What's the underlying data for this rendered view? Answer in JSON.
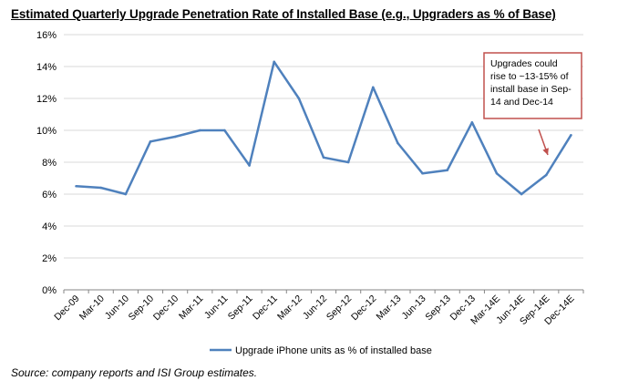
{
  "chart_data": {
    "type": "line",
    "title": "Estimated Quarterly Upgrade Penetration Rate of Installed Base (e.g., Upgraders as % of Base)",
    "categories": [
      "Dec-09",
      "Mar-10",
      "Jun-10",
      "Sep-10",
      "Dec-10",
      "Mar-11",
      "Jun-11",
      "Sep-11",
      "Dec-11",
      "Mar-12",
      "Jun-12",
      "Sep-12",
      "Dec-12",
      "Mar-13",
      "Jun-13",
      "Sep-13",
      "Dec-13",
      "Mar-14E",
      "Jun-14E",
      "Sep-14E",
      "Dec-14E"
    ],
    "series": [
      {
        "name": "Upgrade iPhone units as % of installed base",
        "values": [
          6.5,
          6.4,
          6.0,
          9.3,
          9.6,
          10.0,
          10.0,
          7.8,
          14.3,
          12.0,
          8.3,
          8.0,
          12.7,
          9.2,
          7.3,
          7.5,
          10.5,
          7.3,
          6.0,
          7.2,
          9.7
        ],
        "color": "#4f81bd"
      }
    ],
    "yticks": [
      "0%",
      "2%",
      "4%",
      "6%",
      "8%",
      "10%",
      "12%",
      "14%",
      "16%"
    ],
    "ylim": [
      0,
      16
    ],
    "grid": true,
    "legend_position": "bottom",
    "annotation": {
      "lines": [
        "Upgrades could",
        "rise to ~13-15% of",
        "install base in Sep-",
        "14 and Dec-14"
      ],
      "border_color": "#c0504d",
      "arrow_color": "#c0504d"
    }
  },
  "source": "Source: company reports and ISI Group estimates."
}
